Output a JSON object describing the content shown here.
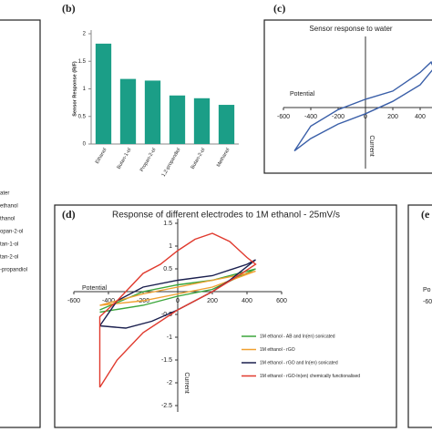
{
  "chart_data": [
    {
      "type": "legend",
      "series": [
        {
          "name": "ater"
        },
        {
          "name": "ethanol"
        },
        {
          "name": "thanol"
        },
        {
          "name": "opan-2-ol"
        },
        {
          "name": "tan-1-ol"
        },
        {
          "name": "tan-2-ol"
        },
        {
          "name": "-propandiol"
        }
      ]
    },
    {
      "type": "bar",
      "label": "(b)",
      "y_label": "Sensor Response (R/F)",
      "categories": [
        "Ethanol",
        "Butan-1-ol",
        "Propan-2-ol",
        "1,2-propandiol",
        "Butan-2-ol",
        "Methanol"
      ],
      "values": [
        1.82,
        1.18,
        1.15,
        0.88,
        0.83,
        0.71
      ],
      "color": "#1b9e87",
      "ylim": [
        0,
        2
      ],
      "yticks": [
        0,
        0.5,
        1,
        1.5,
        2
      ]
    },
    {
      "type": "line",
      "label": "(c)",
      "title": "Sensor response to water",
      "x_label": "Potential",
      "y_label": "Current",
      "xlim": [
        -600,
        600
      ],
      "xticks": [
        -600,
        -400,
        -200,
        0,
        200,
        400
      ],
      "ylim": [
        -1.5,
        1.5
      ],
      "series": [
        {
          "color": "#3a5fa8",
          "x": [
            -520,
            -400,
            -200,
            0,
            200,
            400,
            500,
            480,
            400,
            200,
            0,
            -200,
            -400,
            -520
          ],
          "values": [
            -1.05,
            -0.75,
            -0.4,
            -0.15,
            0.15,
            0.55,
            0.95,
            1.1,
            0.85,
            0.4,
            0.2,
            -0.05,
            -0.45,
            -1.05
          ]
        }
      ]
    },
    {
      "type": "line",
      "label": "(d)",
      "title": "Response of different electrodes to 1M ethanol - 25mV/s",
      "x_label": "Potential",
      "y_label": "Current",
      "xlim": [
        -600,
        600
      ],
      "xticks": [
        -600,
        -400,
        -200,
        0,
        200,
        400,
        600
      ],
      "ylim": [
        -2.5,
        1.5
      ],
      "yticks": [
        -2.5,
        -2,
        -1.5,
        -1,
        -0.5,
        0.5,
        1,
        1.5
      ],
      "series": [
        {
          "name": "1M ethanol - AB and In(en) sonicated",
          "color": "#3aa63a",
          "x": [
            -450,
            -200,
            0,
            200,
            450,
            400,
            200,
            0,
            -200,
            -450
          ],
          "values": [
            -0.45,
            -0.3,
            -0.1,
            0.05,
            0.5,
            0.45,
            0.25,
            0.15,
            0.0,
            -0.4
          ]
        },
        {
          "name": "1M ethanol - rGO",
          "color": "#f0a030",
          "x": [
            -450,
            -200,
            0,
            200,
            450,
            400,
            200,
            0,
            -200,
            -450
          ],
          "values": [
            -0.3,
            -0.2,
            -0.05,
            0.1,
            0.45,
            0.4,
            0.25,
            0.1,
            -0.05,
            -0.3
          ]
        },
        {
          "name": "1M ethanol - rGO and In(en) sonicated",
          "color": "#1a1f4e",
          "x": [
            -450,
            -300,
            -150,
            0,
            100,
            200,
            300,
            450,
            400,
            200,
            0,
            -200,
            -350,
            -450
          ],
          "values": [
            -0.75,
            -0.8,
            -0.65,
            -0.4,
            -0.2,
            0.0,
            0.25,
            0.7,
            0.6,
            0.35,
            0.25,
            0.1,
            -0.2,
            -0.75
          ]
        },
        {
          "name": "1M ethanol - rGO-In(en) chemically functionalised",
          "color": "#e03a2e",
          "x": [
            -450,
            -350,
            -200,
            0,
            200,
            350,
            450,
            400,
            300,
            200,
            100,
            0,
            -100,
            -200,
            -350,
            -450,
            -450
          ],
          "values": [
            -2.1,
            -1.5,
            -0.9,
            -0.4,
            0.0,
            0.35,
            0.6,
            0.75,
            1.1,
            1.28,
            1.15,
            0.9,
            0.6,
            0.4,
            -0.2,
            -0.55,
            -2.1
          ]
        }
      ]
    },
    {
      "type": "partial",
      "label": "(e",
      "texts": [
        "Po",
        "-60"
      ]
    }
  ]
}
